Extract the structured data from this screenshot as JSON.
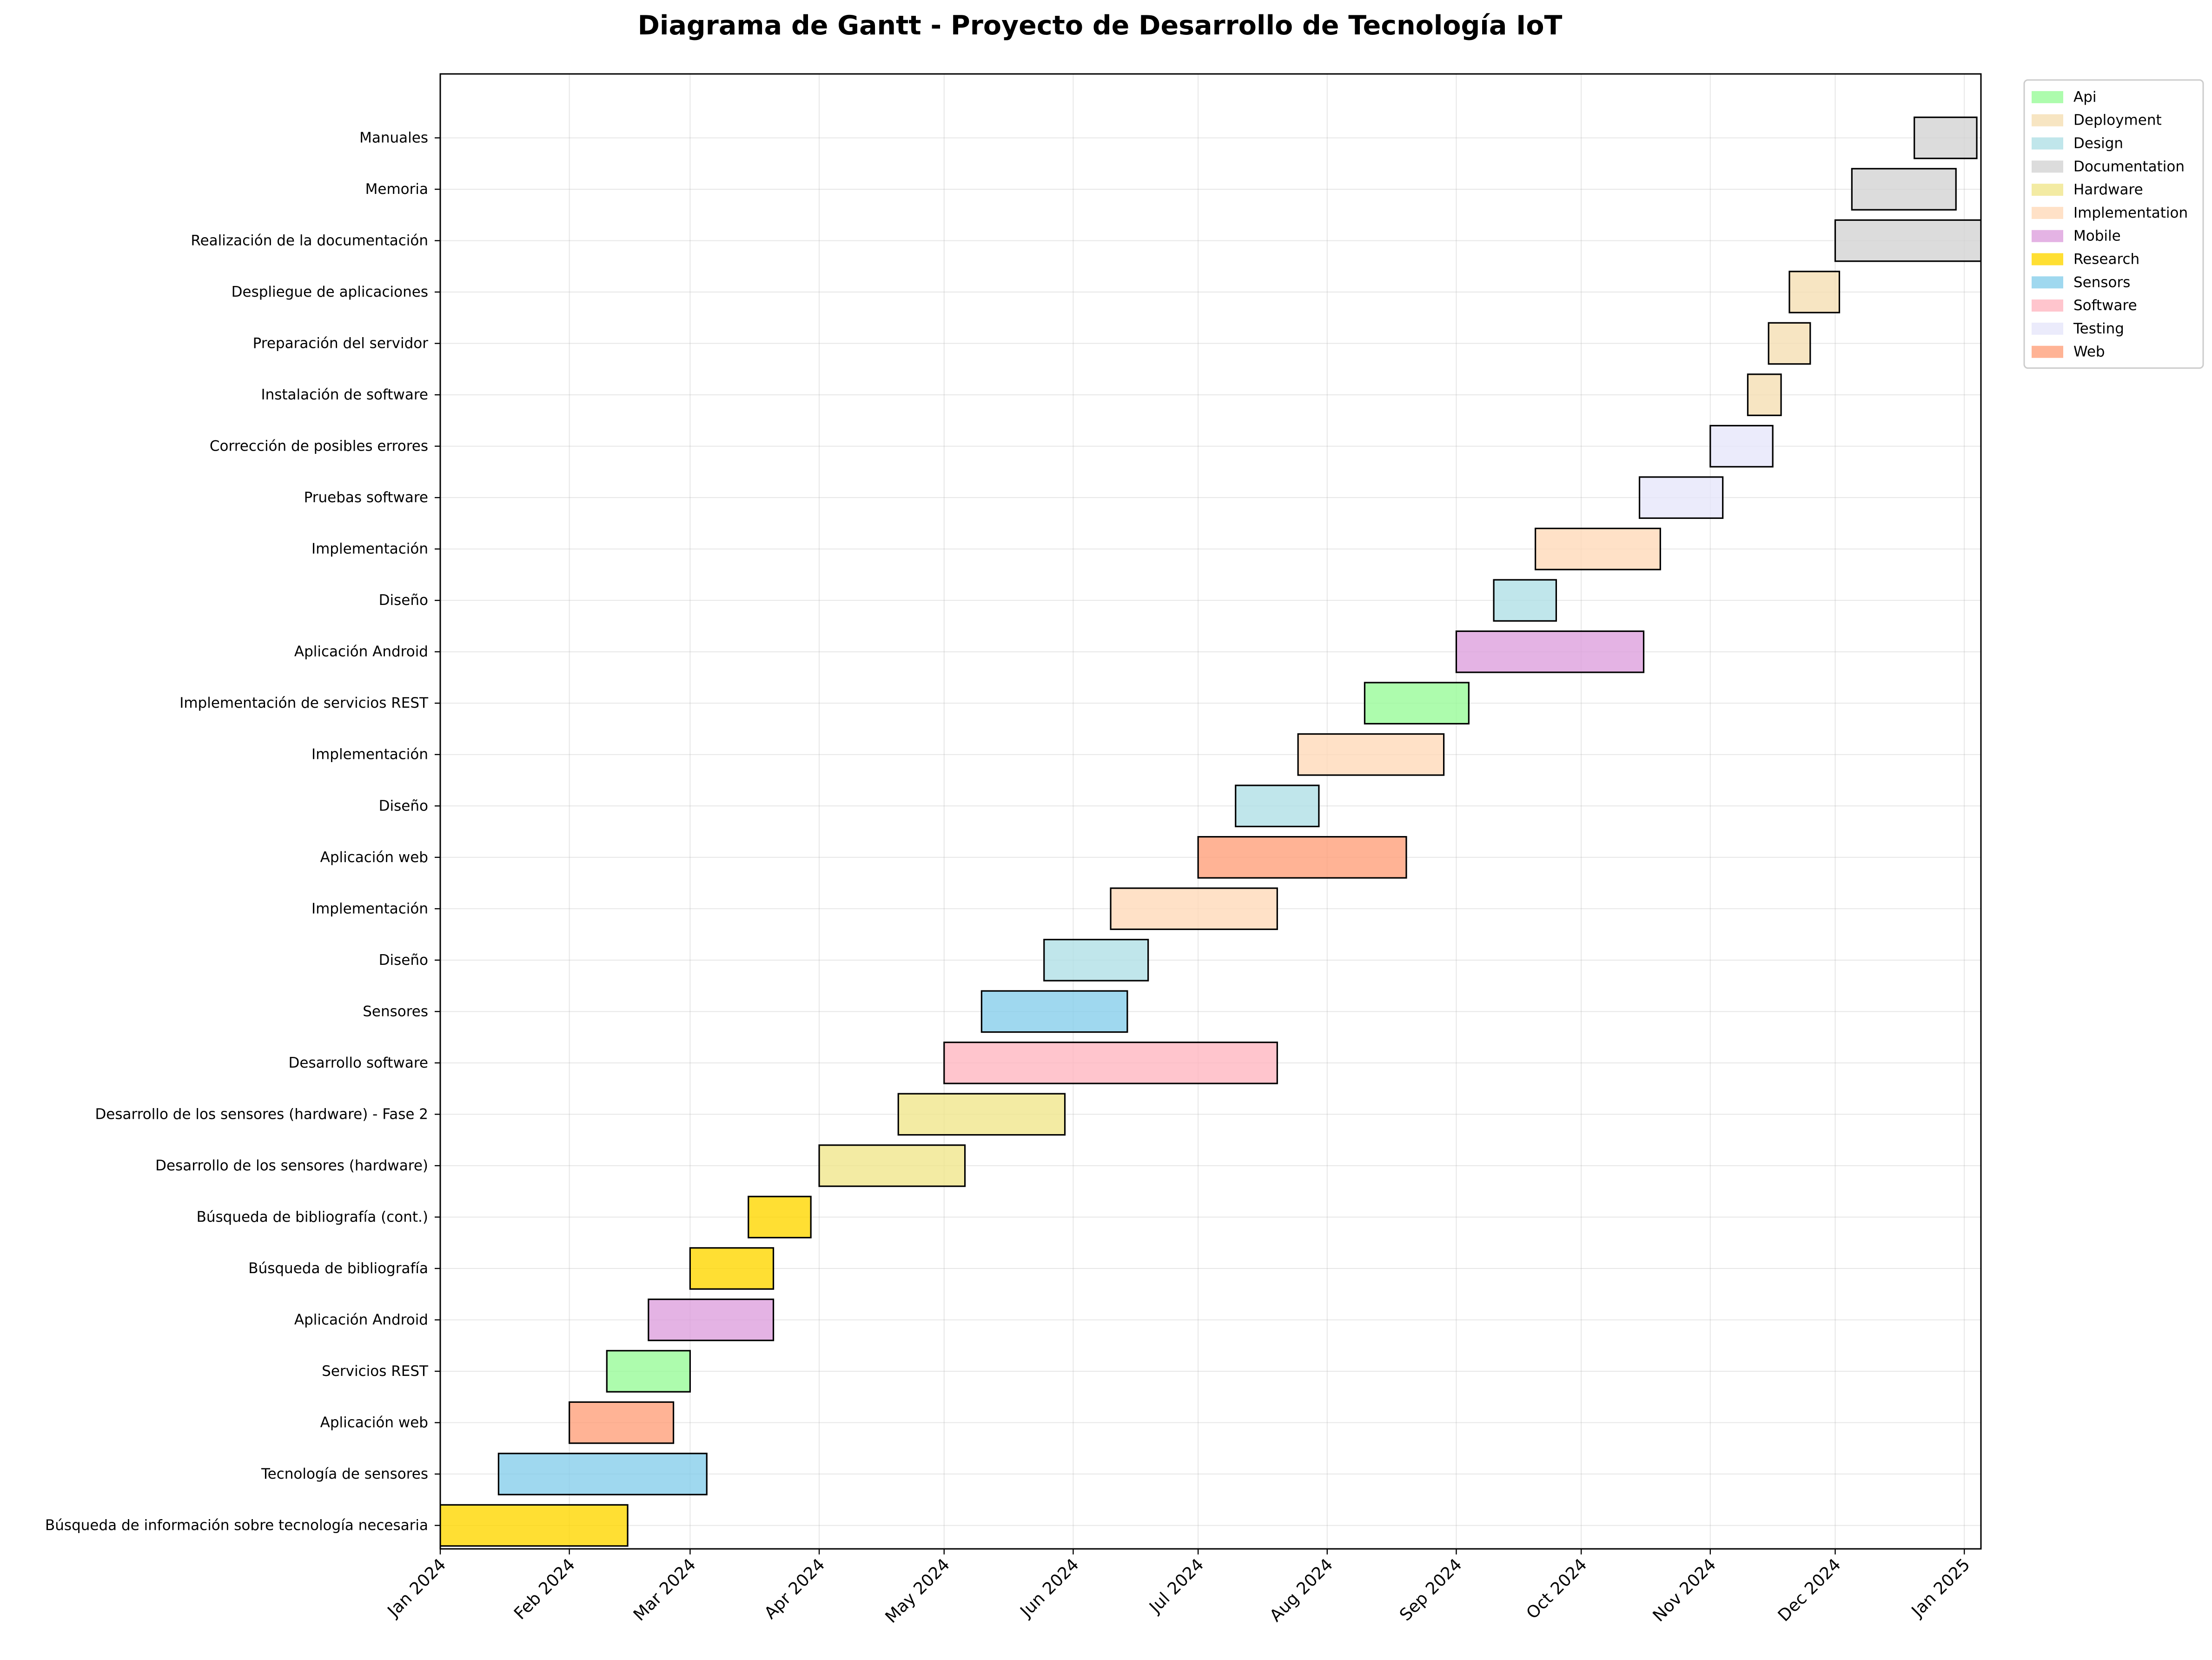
{
  "chart_data": {
    "type": "gantt",
    "title": "Diagrama de Gantt - Proyecto de Desarrollo de Tecnología IoT",
    "xlabel": "",
    "ylabel": "",
    "x_range": [
      "2024-01-01",
      "2025-01-05"
    ],
    "x_ticks": [
      {
        "date": "2024-01-01",
        "label": "Jan 2024"
      },
      {
        "date": "2024-02-01",
        "label": "Feb 2024"
      },
      {
        "date": "2024-03-01",
        "label": "Mar 2024"
      },
      {
        "date": "2024-04-01",
        "label": "Apr 2024"
      },
      {
        "date": "2024-05-01",
        "label": "May 2024"
      },
      {
        "date": "2024-06-01",
        "label": "Jun 2024"
      },
      {
        "date": "2024-07-01",
        "label": "Jul 2024"
      },
      {
        "date": "2024-08-01",
        "label": "Aug 2024"
      },
      {
        "date": "2024-09-01",
        "label": "Sep 2024"
      },
      {
        "date": "2024-10-01",
        "label": "Oct 2024"
      },
      {
        "date": "2024-11-01",
        "label": "Nov 2024"
      },
      {
        "date": "2024-12-01",
        "label": "Dec 2024"
      },
      {
        "date": "2025-01-01",
        "label": "Jan 2025"
      }
    ],
    "grid": true,
    "legend_position": "outside-top-right",
    "categories": [
      {
        "name": "Api",
        "color": "#98FB98"
      },
      {
        "name": "Deployment",
        "color": "#F5DEB3"
      },
      {
        "name": "Design",
        "color": "#B0E0E6"
      },
      {
        "name": "Documentation",
        "color": "#D3D3D3"
      },
      {
        "name": "Hardware",
        "color": "#F0E68C"
      },
      {
        "name": "Implementation",
        "color": "#FFDAB9"
      },
      {
        "name": "Mobile",
        "color": "#DDA0DD"
      },
      {
        "name": "Research",
        "color": "#FFD700"
      },
      {
        "name": "Sensors",
        "color": "#87CEEB"
      },
      {
        "name": "Software",
        "color": "#FFB6C1"
      },
      {
        "name": "Testing",
        "color": "#E6E6FA"
      },
      {
        "name": "Web",
        "color": "#FFA07A"
      }
    ],
    "tasks": [
      {
        "label": "Búsqueda de información sobre tecnología necesaria",
        "category": "Research",
        "start": "2024-01-01",
        "end": "2024-02-15"
      },
      {
        "label": "Tecnología de sensores",
        "category": "Sensors",
        "start": "2024-01-15",
        "end": "2024-03-05"
      },
      {
        "label": "Aplicación web",
        "category": "Web",
        "start": "2024-02-01",
        "end": "2024-02-26"
      },
      {
        "label": "Servicios REST",
        "category": "Api",
        "start": "2024-02-10",
        "end": "2024-03-01"
      },
      {
        "label": "Aplicación Android",
        "category": "Mobile",
        "start": "2024-02-20",
        "end": "2024-03-21"
      },
      {
        "label": "Búsqueda de bibliografía",
        "category": "Research",
        "start": "2024-03-01",
        "end": "2024-03-21"
      },
      {
        "label": "Búsqueda de bibliografía (cont.)",
        "category": "Research",
        "start": "2024-03-15",
        "end": "2024-03-30"
      },
      {
        "label": "Desarrollo de los sensores (hardware)",
        "category": "Hardware",
        "start": "2024-04-01",
        "end": "2024-05-06"
      },
      {
        "label": "Desarrollo de los sensores (hardware) - Fase 2",
        "category": "Hardware",
        "start": "2024-04-20",
        "end": "2024-05-30"
      },
      {
        "label": "Desarrollo software",
        "category": "Software",
        "start": "2024-05-01",
        "end": "2024-07-20"
      },
      {
        "label": "Sensores",
        "category": "Sensors",
        "start": "2024-05-10",
        "end": "2024-06-14"
      },
      {
        "label": "Diseño",
        "category": "Design",
        "start": "2024-05-25",
        "end": "2024-06-19"
      },
      {
        "label": "Implementación",
        "category": "Implementation",
        "start": "2024-06-10",
        "end": "2024-07-20"
      },
      {
        "label": "Aplicación web",
        "category": "Web",
        "start": "2024-07-01",
        "end": "2024-08-20"
      },
      {
        "label": "Diseño",
        "category": "Design",
        "start": "2024-07-10",
        "end": "2024-07-30"
      },
      {
        "label": "Implementación",
        "category": "Implementation",
        "start": "2024-07-25",
        "end": "2024-08-29"
      },
      {
        "label": "Implementación de servicios REST",
        "category": "Api",
        "start": "2024-08-10",
        "end": "2024-09-04"
      },
      {
        "label": "Aplicación Android",
        "category": "Mobile",
        "start": "2024-09-01",
        "end": "2024-10-16"
      },
      {
        "label": "Diseño",
        "category": "Design",
        "start": "2024-09-10",
        "end": "2024-09-25"
      },
      {
        "label": "Implementación",
        "category": "Implementation",
        "start": "2024-09-20",
        "end": "2024-10-20"
      },
      {
        "label": "Pruebas software",
        "category": "Testing",
        "start": "2024-10-15",
        "end": "2024-11-04"
      },
      {
        "label": "Corrección de posibles errores",
        "category": "Testing",
        "start": "2024-11-01",
        "end": "2024-11-16"
      },
      {
        "label": "Instalación de software",
        "category": "Deployment",
        "start": "2024-11-10",
        "end": "2024-11-18"
      },
      {
        "label": "Preparación del servidor",
        "category": "Deployment",
        "start": "2024-11-15",
        "end": "2024-11-25"
      },
      {
        "label": "Despliegue de aplicaciones",
        "category": "Deployment",
        "start": "2024-11-20",
        "end": "2024-12-02"
      },
      {
        "label": "Realización de la documentación",
        "category": "Documentation",
        "start": "2024-12-01",
        "end": "2025-01-05"
      },
      {
        "label": "Memoria",
        "category": "Documentation",
        "start": "2024-12-05",
        "end": "2024-12-30"
      },
      {
        "label": "Manuales",
        "category": "Documentation",
        "start": "2024-12-20",
        "end": "2025-01-04"
      }
    ]
  }
}
